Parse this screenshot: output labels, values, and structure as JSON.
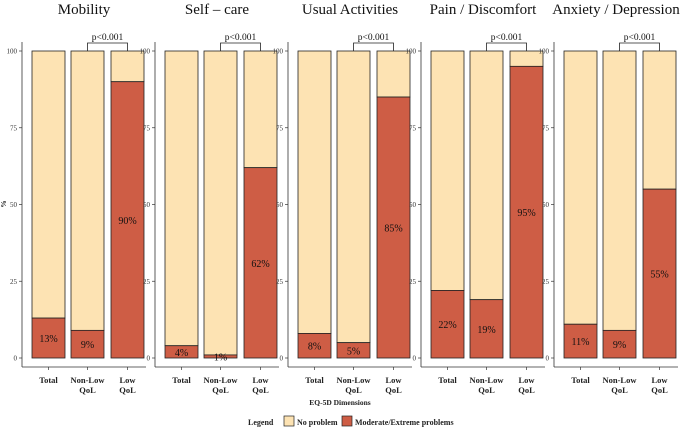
{
  "chart_data": {
    "type": "bar",
    "stacked": true,
    "xlabel": "EQ-5D Dimensions",
    "ylabel": "%",
    "ylim": [
      0,
      100
    ],
    "yticks": [
      "0",
      "25",
      "50",
      "75",
      "100"
    ],
    "categories": [
      "Total",
      "Non-Low QoL",
      "Low QoL"
    ],
    "category_lines": [
      [
        "Total"
      ],
      [
        "Non-Low",
        "QoL"
      ],
      [
        "Low",
        "QoL"
      ]
    ],
    "legend": {
      "title": "Legend",
      "position": "bottom",
      "items": [
        {
          "label": "No problem",
          "color": "#FDE3B3"
        },
        {
          "label": "Moderate/Extreme problems",
          "color": "#CE5D45"
        }
      ]
    },
    "panels": [
      {
        "title": "Mobility",
        "problem_values": [
          13,
          9,
          90
        ],
        "labels": [
          "13%",
          "9%",
          "90%"
        ],
        "pvalue": "p<0.001"
      },
      {
        "title": "Self – care",
        "problem_values": [
          4,
          1,
          62
        ],
        "labels": [
          "4%",
          "1%",
          "62%"
        ],
        "pvalue": "p<0.001"
      },
      {
        "title": "Usual Activities",
        "problem_values": [
          8,
          5,
          85
        ],
        "labels": [
          "8%",
          "5%",
          "85%"
        ],
        "pvalue": "p<0.001"
      },
      {
        "title": "Pain / Discomfort",
        "problem_values": [
          22,
          19,
          95
        ],
        "labels": [
          "22%",
          "19%",
          "95%"
        ],
        "pvalue": "p<0.001"
      },
      {
        "title": "Anxiety / Depression",
        "problem_values": [
          11,
          9,
          55
        ],
        "labels": [
          "11%",
          "9%",
          "55%"
        ],
        "pvalue": "p<0.001"
      }
    ]
  }
}
